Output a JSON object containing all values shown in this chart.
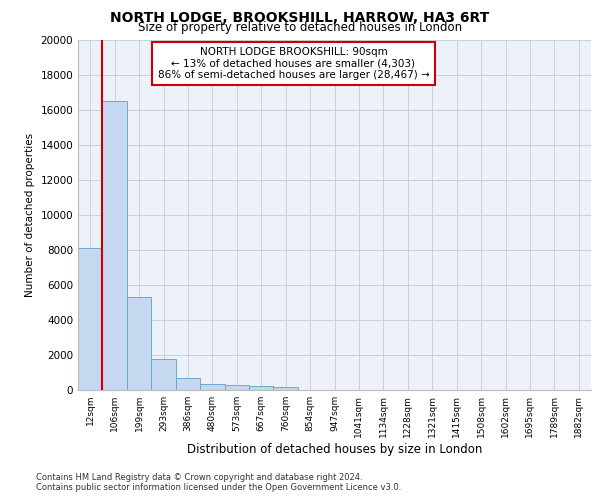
{
  "title1": "NORTH LODGE, BROOKSHILL, HARROW, HA3 6RT",
  "title2": "Size of property relative to detached houses in London",
  "xlabel": "Distribution of detached houses by size in London",
  "ylabel": "Number of detached properties",
  "categories": [
    "12sqm",
    "106sqm",
    "199sqm",
    "293sqm",
    "386sqm",
    "480sqm",
    "573sqm",
    "667sqm",
    "760sqm",
    "854sqm",
    "947sqm",
    "1041sqm",
    "1134sqm",
    "1228sqm",
    "1321sqm",
    "1415sqm",
    "1508sqm",
    "1602sqm",
    "1695sqm",
    "1789sqm",
    "1882sqm"
  ],
  "values": [
    8100,
    16500,
    5300,
    1800,
    700,
    350,
    270,
    220,
    180,
    0,
    0,
    0,
    0,
    0,
    0,
    0,
    0,
    0,
    0,
    0,
    0
  ],
  "bar_color": "#c5d8f0",
  "bar_edge_color": "#6aaad4",
  "vline_color": "#cc0000",
  "annotation_text": "NORTH LODGE BROOKSHILL: 90sqm\n← 13% of detached houses are smaller (4,303)\n86% of semi-detached houses are larger (28,467) →",
  "annotation_box_color": "#ffffff",
  "annotation_box_edge": "#cc0000",
  "ylim": [
    0,
    20000
  ],
  "yticks": [
    0,
    2000,
    4000,
    6000,
    8000,
    10000,
    12000,
    14000,
    16000,
    18000,
    20000
  ],
  "background_color": "#edf2fa",
  "grid_color": "#c8d0dc",
  "footer1": "Contains HM Land Registry data © Crown copyright and database right 2024.",
  "footer2": "Contains public sector information licensed under the Open Government Licence v3.0."
}
